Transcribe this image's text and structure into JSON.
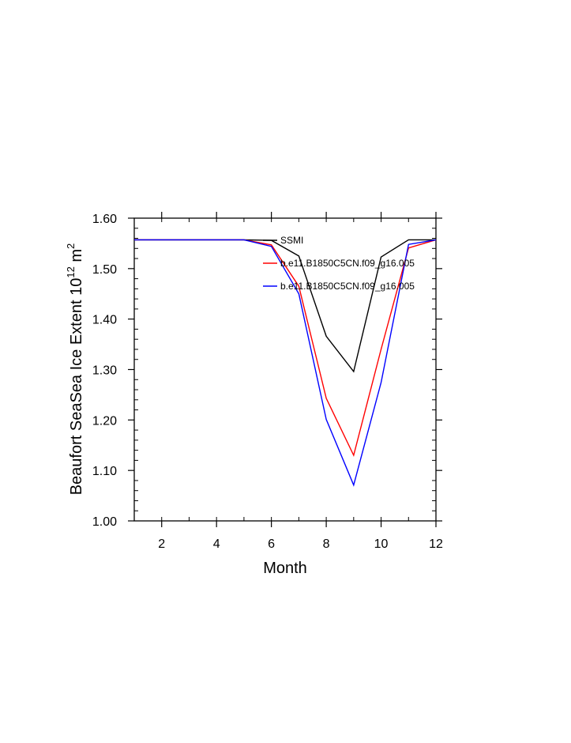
{
  "chart_data": {
    "type": "line",
    "title": "",
    "xlabel": "Month",
    "ylabel": "Beaufort SeaSea Ice Extent 10",
    "ylabel_sup": "12",
    "ylabel_unit": " m",
    "ylabel_unit_sup": "2",
    "xlim": [
      1,
      12
    ],
    "ylim": [
      1.0,
      1.6
    ],
    "x_ticks": [
      2,
      4,
      6,
      8,
      10,
      12
    ],
    "y_ticks": [
      "1.00",
      "1.10",
      "1.20",
      "1.30",
      "1.40",
      "1.50",
      "1.60"
    ],
    "grid": false,
    "legend_position": "top-right (inside)",
    "x": [
      1,
      2,
      3,
      4,
      5,
      6,
      7,
      8,
      9,
      10,
      11,
      12
    ],
    "series": [
      {
        "name": "SSMI",
        "color": "#000000",
        "values": [
          1.557,
          1.557,
          1.557,
          1.557,
          1.557,
          1.556,
          1.525,
          1.366,
          1.296,
          1.523,
          1.557,
          1.557
        ]
      },
      {
        "name": "b.e11.B1850C5CN.f09_g16.005",
        "color": "#ff0000",
        "values": [
          1.557,
          1.557,
          1.557,
          1.557,
          1.557,
          1.547,
          1.465,
          1.243,
          1.13,
          1.34,
          1.541,
          1.557
        ]
      },
      {
        "name": "b.e11.B1850C5CN.f09_g16.005",
        "color": "#0000ff",
        "values": [
          1.557,
          1.557,
          1.557,
          1.557,
          1.557,
          1.544,
          1.45,
          1.201,
          1.071,
          1.274,
          1.548,
          1.557
        ]
      }
    ]
  }
}
